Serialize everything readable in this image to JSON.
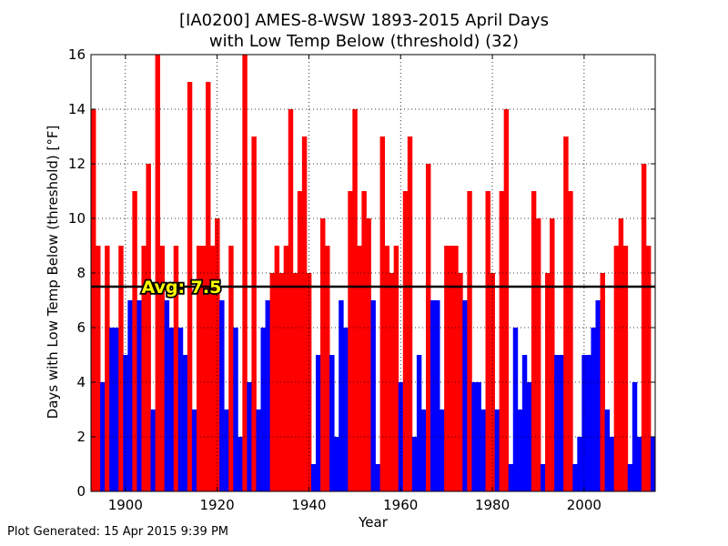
{
  "title_line_1": "[IA0200] AMES-8-WSW 1893-2015 April Days",
  "title_line_2": "with Low Temp Below (threshold) (32)",
  "footer_text": "Plot Generated: 15 Apr 2015 9:39 PM",
  "chart_data": {
    "type": "bar",
    "title": "[IA0200] AMES-8-WSW 1893-2015 April Days with Low Temp Below (threshold) (32)",
    "xlabel": "Year",
    "ylabel": "Days with Low Temp Below (threshold) [°F]",
    "xlim": [
      1892.5,
      2015.5
    ],
    "ylim": [
      0,
      16
    ],
    "x_ticks": [
      1900,
      1920,
      1940,
      1960,
      1980,
      2000
    ],
    "y_ticks": [
      0,
      2,
      4,
      6,
      8,
      10,
      12,
      14,
      16
    ],
    "grid": true,
    "average": 7.5,
    "average_label": "Avg: 7.5",
    "colors": {
      "above_avg": "#ff0000",
      "below_avg": "#0000ff",
      "avg_line": "#000000"
    },
    "years": [
      1893,
      1894,
      1895,
      1896,
      1897,
      1898,
      1899,
      1900,
      1901,
      1902,
      1903,
      1904,
      1905,
      1906,
      1907,
      1908,
      1909,
      1910,
      1911,
      1912,
      1913,
      1914,
      1915,
      1916,
      1917,
      1918,
      1919,
      1920,
      1921,
      1922,
      1923,
      1924,
      1925,
      1926,
      1927,
      1928,
      1929,
      1930,
      1931,
      1932,
      1933,
      1934,
      1935,
      1936,
      1937,
      1938,
      1939,
      1940,
      1941,
      1942,
      1943,
      1944,
      1945,
      1946,
      1947,
      1948,
      1949,
      1950,
      1951,
      1952,
      1953,
      1954,
      1955,
      1956,
      1957,
      1958,
      1959,
      1960,
      1961,
      1962,
      1963,
      1964,
      1965,
      1966,
      1967,
      1968,
      1969,
      1970,
      1971,
      1972,
      1973,
      1974,
      1975,
      1976,
      1977,
      1978,
      1979,
      1980,
      1981,
      1982,
      1983,
      1984,
      1985,
      1986,
      1987,
      1988,
      1989,
      1990,
      1991,
      1992,
      1993,
      1994,
      1995,
      1996,
      1997,
      1998,
      1999,
      2000,
      2001,
      2002,
      2003,
      2004,
      2005,
      2006,
      2007,
      2008,
      2009,
      2010,
      2011,
      2012,
      2013,
      2014,
      2015
    ],
    "values": [
      14,
      9,
      4,
      9,
      6,
      6,
      9,
      5,
      7,
      11,
      7,
      9,
      12,
      3,
      16,
      9,
      7,
      6,
      9,
      6,
      5,
      15,
      3,
      9,
      9,
      15,
      9,
      10,
      7,
      3,
      9,
      6,
      2,
      16,
      4,
      13,
      3,
      6,
      7,
      8,
      9,
      8,
      9,
      14,
      8,
      11,
      13,
      8,
      1,
      5,
      10,
      9,
      5,
      2,
      7,
      6,
      11,
      14,
      9,
      11,
      10,
      7,
      1,
      13,
      9,
      8,
      9,
      4,
      11,
      13,
      2,
      5,
      3,
      12,
      7,
      7,
      3,
      9,
      9,
      9,
      8,
      7,
      11,
      4,
      4,
      3,
      11,
      8,
      3,
      11,
      14,
      1,
      6,
      3,
      5,
      4,
      11,
      10,
      1,
      8,
      10,
      5,
      5,
      13,
      11,
      1,
      2,
      5,
      5,
      6,
      7,
      8,
      3,
      2,
      9,
      10,
      9,
      1,
      4,
      2,
      12,
      9,
      2
    ]
  }
}
